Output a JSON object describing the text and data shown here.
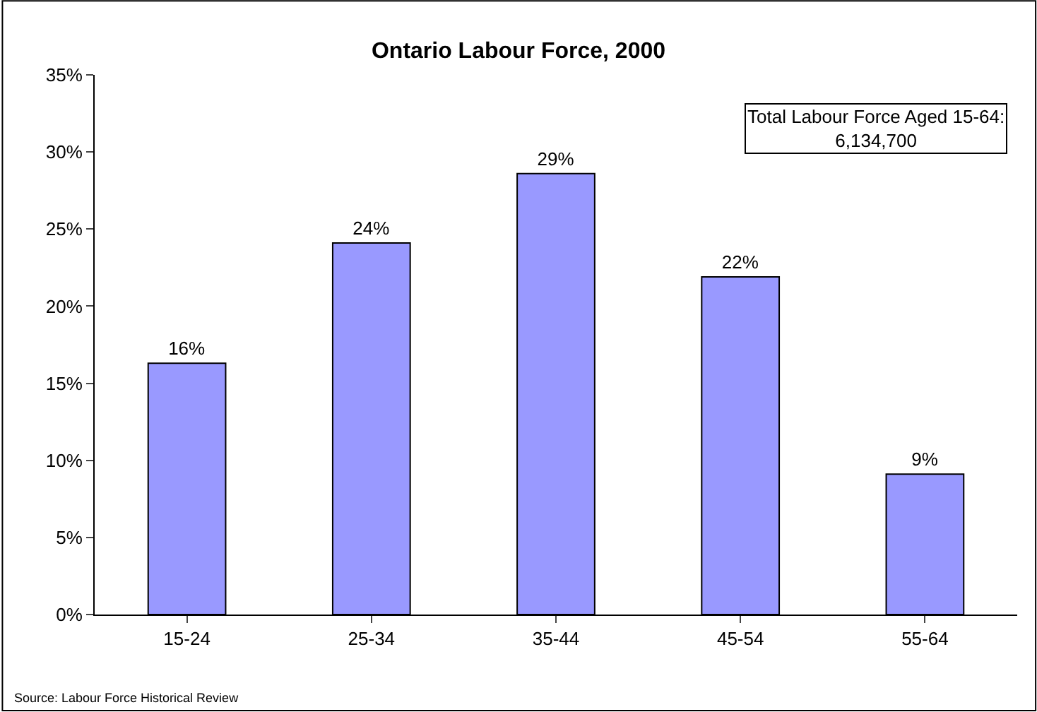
{
  "chart_data": {
    "type": "bar",
    "title": "Ontario Labour Force, 2000",
    "categories": [
      "15-24",
      "25-34",
      "35-44",
      "45-54",
      "55-64"
    ],
    "values": [
      16.3,
      24.1,
      28.6,
      21.9,
      9.1
    ],
    "value_labels": [
      "16%",
      "24%",
      "29%",
      "22%",
      "9%"
    ],
    "color": "#9999ff",
    "ylim": [
      0,
      35
    ],
    "yticks": [
      {
        "value": 0,
        "label": "0%"
      },
      {
        "value": 5,
        "label": "5%"
      },
      {
        "value": 10,
        "label": "10%"
      },
      {
        "value": 15,
        "label": "15%"
      },
      {
        "value": 20,
        "label": "20%"
      },
      {
        "value": 25,
        "label": "25%"
      },
      {
        "value": 30,
        "label": "30%"
      },
      {
        "value": 35,
        "label": "35%"
      }
    ],
    "grid": false,
    "legend": false,
    "annotations": [
      "Total Labour Force Aged 15-64:\n6,134,700",
      "Source: Labour Force Historical Review"
    ]
  }
}
